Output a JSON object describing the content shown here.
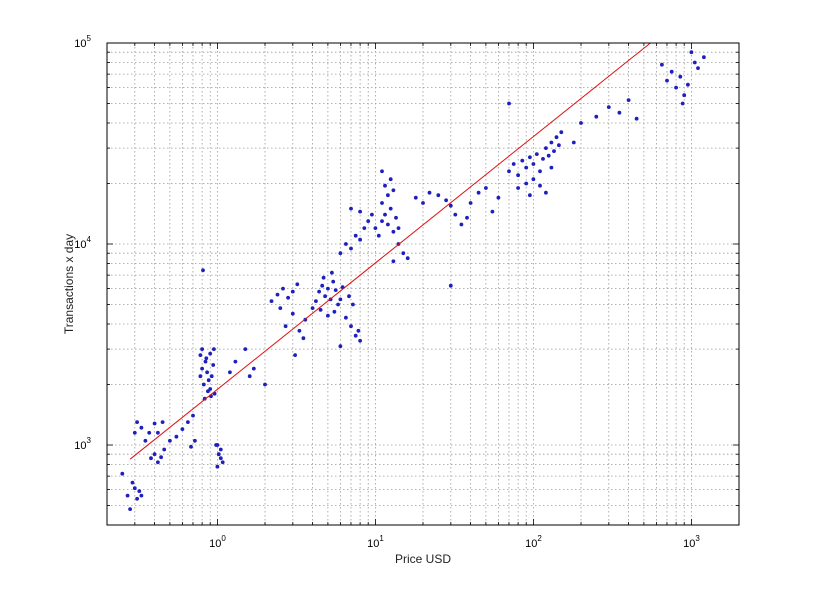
{
  "chart_data": {
    "type": "scatter",
    "xlabel": "Price USD",
    "ylabel": "Transactions x day",
    "x_scale": "log",
    "y_scale": "log",
    "xlim": [
      0.2,
      2000
    ],
    "ylim": [
      400,
      100000
    ],
    "grid": true,
    "x_ticks": [
      {
        "value": 1,
        "base": "10",
        "exp": "0"
      },
      {
        "value": 10,
        "base": "10",
        "exp": "1"
      },
      {
        "value": 100,
        "base": "10",
        "exp": "2"
      },
      {
        "value": 1000,
        "base": "10",
        "exp": "3"
      }
    ],
    "y_ticks": [
      {
        "value": 1000,
        "base": "10",
        "exp": "3"
      },
      {
        "value": 10000,
        "base": "10",
        "exp": "4"
      },
      {
        "value": 100000,
        "base": "10",
        "exp": "5"
      }
    ],
    "colors": {
      "points": "#1f1fbf",
      "fit_line": "#dd1111",
      "grid": "#9a9a9a"
    },
    "series": [
      {
        "marker": "dot",
        "points": [
          [
            0.25,
            720
          ],
          [
            0.27,
            560
          ],
          [
            0.28,
            480
          ],
          [
            0.29,
            650
          ],
          [
            0.3,
            610
          ],
          [
            0.31,
            540
          ],
          [
            0.32,
            590
          ],
          [
            0.33,
            560
          ],
          [
            0.3,
            1150
          ],
          [
            0.31,
            1300
          ],
          [
            0.33,
            1220
          ],
          [
            0.35,
            1050
          ],
          [
            0.37,
            1150
          ],
          [
            0.4,
            1280
          ],
          [
            0.42,
            1150
          ],
          [
            0.45,
            1300
          ],
          [
            0.4,
            900
          ],
          [
            0.42,
            820
          ],
          [
            0.44,
            870
          ],
          [
            0.46,
            950
          ],
          [
            0.38,
            860
          ],
          [
            0.5,
            1050
          ],
          [
            0.55,
            1100
          ],
          [
            0.6,
            1200
          ],
          [
            0.65,
            1300
          ],
          [
            0.7,
            1400
          ],
          [
            0.68,
            980
          ],
          [
            0.72,
            1050
          ],
          [
            0.78,
            2200
          ],
          [
            0.8,
            2400
          ],
          [
            0.82,
            2000
          ],
          [
            0.84,
            2600
          ],
          [
            0.86,
            2300
          ],
          [
            0.88,
            2100
          ],
          [
            0.9,
            1900
          ],
          [
            0.92,
            2200
          ],
          [
            0.94,
            2500
          ],
          [
            0.96,
            1800
          ],
          [
            0.78,
            2800
          ],
          [
            0.8,
            3000
          ],
          [
            0.85,
            2700
          ],
          [
            0.9,
            2850
          ],
          [
            0.95,
            3000
          ],
          [
            0.83,
            1700
          ],
          [
            0.87,
            1850
          ],
          [
            0.91,
            1750
          ],
          [
            0.81,
            7400
          ],
          [
            1.0,
            1000
          ],
          [
            1.02,
            900
          ],
          [
            1.05,
            950
          ],
          [
            1.08,
            820
          ],
          [
            1.0,
            780
          ],
          [
            1.05,
            860
          ],
          [
            0.98,
            1000
          ],
          [
            1.2,
            2300
          ],
          [
            1.3,
            2600
          ],
          [
            1.5,
            3000
          ],
          [
            1.7,
            2400
          ],
          [
            2.0,
            2000
          ],
          [
            1.6,
            2200
          ],
          [
            2.2,
            5200
          ],
          [
            2.4,
            5600
          ],
          [
            2.6,
            6000
          ],
          [
            2.8,
            5400
          ],
          [
            3.0,
            5800
          ],
          [
            3.2,
            6300
          ],
          [
            2.5,
            4800
          ],
          [
            2.7,
            3900
          ],
          [
            3.0,
            4500
          ],
          [
            3.3,
            3700
          ],
          [
            3.6,
            4200
          ],
          [
            4.0,
            4800
          ],
          [
            3.5,
            3400
          ],
          [
            3.1,
            2800
          ],
          [
            4.2,
            5200
          ],
          [
            4.4,
            5800
          ],
          [
            4.6,
            6200
          ],
          [
            4.8,
            5500
          ],
          [
            5.0,
            6000
          ],
          [
            5.2,
            5300
          ],
          [
            5.4,
            6500
          ],
          [
            5.6,
            5900
          ],
          [
            5.8,
            5000
          ],
          [
            4.5,
            4700
          ],
          [
            5.0,
            4400
          ],
          [
            5.5,
            4600
          ],
          [
            6.0,
            5300
          ],
          [
            4.7,
            6800
          ],
          [
            5.3,
            7200
          ],
          [
            6.2,
            6100
          ],
          [
            6.8,
            5500
          ],
          [
            7.2,
            5000
          ],
          [
            6.5,
            4300
          ],
          [
            7.0,
            3900
          ],
          [
            7.5,
            3500
          ],
          [
            8.0,
            3300
          ],
          [
            6.0,
            3100
          ],
          [
            7.8,
            3700
          ],
          [
            6.0,
            9000
          ],
          [
            6.5,
            10000
          ],
          [
            7.0,
            9500
          ],
          [
            7.5,
            11000
          ],
          [
            8.0,
            10500
          ],
          [
            8.5,
            12000
          ],
          [
            9.0,
            13000
          ],
          [
            9.5,
            14000
          ],
          [
            7.0,
            15000
          ],
          [
            8.0,
            14500
          ],
          [
            10.0,
            12000
          ],
          [
            10.5,
            11000
          ],
          [
            11.0,
            13000
          ],
          [
            11.5,
            14000
          ],
          [
            12.0,
            12500
          ],
          [
            12.5,
            15000
          ],
          [
            13.0,
            11500
          ],
          [
            13.5,
            13500
          ],
          [
            14.0,
            12000
          ],
          [
            11.0,
            16000
          ],
          [
            12.0,
            17500
          ],
          [
            13.0,
            18500
          ],
          [
            11.5,
            19500
          ],
          [
            12.5,
            21000
          ],
          [
            11.0,
            23000
          ],
          [
            14.0,
            10000
          ],
          [
            15.0,
            9000
          ],
          [
            16.0,
            8500
          ],
          [
            13.0,
            8200
          ],
          [
            18.0,
            17000
          ],
          [
            20.0,
            16000
          ],
          [
            22.0,
            18000
          ],
          [
            25.0,
            17500
          ],
          [
            28.0,
            16500
          ],
          [
            30.0,
            15500
          ],
          [
            32.0,
            14000
          ],
          [
            35.0,
            12500
          ],
          [
            38.0,
            13500
          ],
          [
            40.0,
            16000
          ],
          [
            45.0,
            18000
          ],
          [
            50.0,
            19000
          ],
          [
            55.0,
            14500
          ],
          [
            60.0,
            17000
          ],
          [
            30.0,
            6200
          ],
          [
            70.0,
            23000
          ],
          [
            75.0,
            25000
          ],
          [
            80.0,
            22000
          ],
          [
            85.0,
            26000
          ],
          [
            90.0,
            24000
          ],
          [
            95.0,
            27000
          ],
          [
            100.0,
            25000
          ],
          [
            105.0,
            28000
          ],
          [
            110.0,
            23000
          ],
          [
            115.0,
            26500
          ],
          [
            120.0,
            30000
          ],
          [
            125.0,
            27500
          ],
          [
            130.0,
            32000
          ],
          [
            135.0,
            29000
          ],
          [
            140.0,
            34000
          ],
          [
            145.0,
            31000
          ],
          [
            150.0,
            36000
          ],
          [
            100.0,
            21000
          ],
          [
            110.0,
            19500
          ],
          [
            120.0,
            18000
          ],
          [
            90.0,
            20000
          ],
          [
            80.0,
            19000
          ],
          [
            130.0,
            24000
          ],
          [
            95.0,
            17500
          ],
          [
            70.0,
            50000
          ],
          [
            180.0,
            32000
          ],
          [
            200.0,
            40000
          ],
          [
            250.0,
            43000
          ],
          [
            300.0,
            48000
          ],
          [
            400.0,
            52000
          ],
          [
            350.0,
            45000
          ],
          [
            450.0,
            42000
          ],
          [
            650.0,
            78000
          ],
          [
            700.0,
            65000
          ],
          [
            750.0,
            72000
          ],
          [
            800.0,
            60000
          ],
          [
            850.0,
            68000
          ],
          [
            900.0,
            55000
          ],
          [
            1000.0,
            90000
          ],
          [
            1050.0,
            80000
          ],
          [
            1100.0,
            75000
          ],
          [
            1200.0,
            85000
          ],
          [
            950.0,
            62000
          ],
          [
            880.0,
            50000
          ]
        ]
      }
    ],
    "fit_line": {
      "x": [
        0.28,
        550
      ],
      "y": [
        850,
        100000
      ]
    }
  }
}
